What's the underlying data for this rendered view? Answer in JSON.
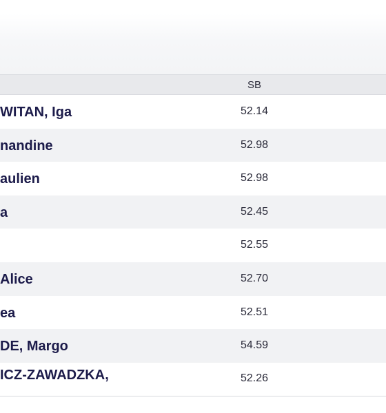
{
  "table": {
    "header": {
      "sb": "SB"
    },
    "rows": [
      {
        "name": "WITAN, Iga",
        "sb": "52.14"
      },
      {
        "name": "nandine",
        "sb": "52.98"
      },
      {
        "name": "aulien",
        "sb": "52.98"
      },
      {
        "name": "a",
        "sb": "52.45"
      },
      {
        "name": "",
        "sb": "52.55"
      },
      {
        "name": "Alice",
        "sb": "52.70"
      },
      {
        "name": "ea",
        "sb": "52.51"
      },
      {
        "name": "DE, Margo",
        "sb": "54.59"
      },
      {
        "name": "ICZ-ZAWADZKA,",
        "sb": "52.26"
      }
    ]
  }
}
